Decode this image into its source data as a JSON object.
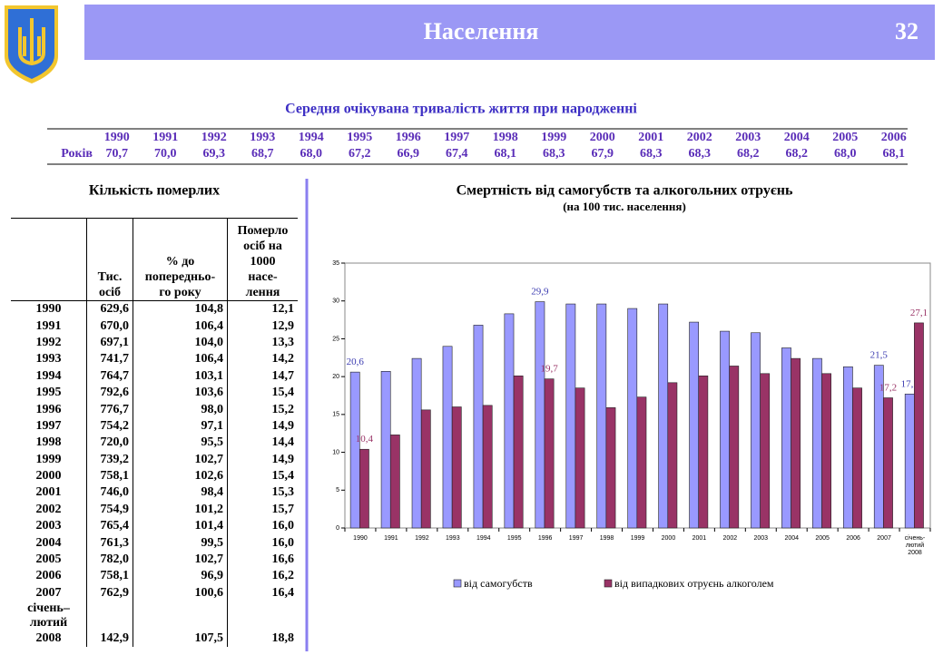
{
  "header": {
    "title": "Населення",
    "page": "32"
  },
  "life_table": {
    "title": "Середня очікувана тривалість життя при народженні",
    "row_label": "Років",
    "years": [
      "1990",
      "1991",
      "1992",
      "1993",
      "1994",
      "1995",
      "1996",
      "1997",
      "1998",
      "1999",
      "2000",
      "2001",
      "2002",
      "2003",
      "2004",
      "2005",
      "2006"
    ],
    "values": [
      "70,7",
      "70,0",
      "69,3",
      "68,7",
      "68,0",
      "67,2",
      "66,9",
      "67,4",
      "68,1",
      "68,3",
      "67,9",
      "68,3",
      "68,3",
      "68,2",
      "68,2",
      "68,0",
      "68,1"
    ]
  },
  "deaths_table": {
    "title": "Кількість померлих",
    "headers": [
      "Тис.\nосіб",
      "% до\nпопередньо-\nго року",
      "Померло\nосіб на\n1000\nнасе-\nлення"
    ],
    "last_row_note": "січень–лютий",
    "rows": [
      [
        "1990",
        "629,6",
        "104,8",
        "12,1"
      ],
      [
        "1991",
        "670,0",
        "106,4",
        "12,9"
      ],
      [
        "1992",
        "697,1",
        "104,0",
        "13,3"
      ],
      [
        "1993",
        "741,7",
        "106,4",
        "14,2"
      ],
      [
        "1994",
        "764,7",
        "103,1",
        "14,7"
      ],
      [
        "1995",
        "792,6",
        "103,6",
        "15,4"
      ],
      [
        "1996",
        "776,7",
        "98,0",
        "15,2"
      ],
      [
        "1997",
        "754,2",
        "97,1",
        "14,9"
      ],
      [
        "1998",
        "720,0",
        "95,5",
        "14,4"
      ],
      [
        "1999",
        "739,2",
        "102,7",
        "14,9"
      ],
      [
        "2000",
        "758,1",
        "102,6",
        "15,4"
      ],
      [
        "2001",
        "746,0",
        "98,4",
        "15,3"
      ],
      [
        "2002",
        "754,9",
        "101,2",
        "15,7"
      ],
      [
        "2003",
        "765,4",
        "101,4",
        "16,0"
      ],
      [
        "2004",
        "761,3",
        "99,5",
        "16,0"
      ],
      [
        "2005",
        "782,0",
        "102,7",
        "16,6"
      ],
      [
        "2006",
        "758,1",
        "96,9",
        "16,2"
      ],
      [
        "2007",
        "762,9",
        "100,6",
        "16,4"
      ],
      [
        "2008",
        "142,9",
        "107,5",
        "18,8"
      ]
    ]
  },
  "chart_data": {
    "type": "bar",
    "title": "Смертність від самогубств та алкогольних отруєнь",
    "subtitle": "(на 100 тис. населення)",
    "categories": [
      "1990",
      "1991",
      "1992",
      "1993",
      "1994",
      "1995",
      "1996",
      "1997",
      "1998",
      "1999",
      "2000",
      "2001",
      "2002",
      "2003",
      "2004",
      "2005",
      "2006",
      "2007",
      "січень-лютий 2008"
    ],
    "series": [
      {
        "name": "від самогубств",
        "color": "#9999ff",
        "values": [
          20.6,
          20.7,
          22.4,
          24.0,
          26.8,
          28.3,
          29.9,
          29.6,
          29.6,
          29.0,
          29.6,
          27.2,
          26.0,
          25.8,
          23.8,
          22.4,
          21.3,
          21.5,
          17.7
        ],
        "value_labels": [
          "20,6",
          null,
          null,
          null,
          null,
          null,
          "29,9",
          null,
          null,
          null,
          null,
          null,
          null,
          null,
          null,
          null,
          null,
          "21,5",
          "17,7"
        ]
      },
      {
        "name": "від випадкових отруєнь алкоголем",
        "color": "#993366",
        "values": [
          10.4,
          12.3,
          15.6,
          16.0,
          16.2,
          20.1,
          19.7,
          18.5,
          15.9,
          17.3,
          19.2,
          20.1,
          21.4,
          20.4,
          22.4,
          20.4,
          18.5,
          17.2,
          27.1
        ],
        "value_labels": [
          "10,4",
          null,
          null,
          null,
          null,
          null,
          "19,7",
          null,
          null,
          null,
          null,
          null,
          null,
          null,
          null,
          null,
          null,
          "17,2",
          "27,1"
        ]
      }
    ],
    "ylim": [
      0,
      35
    ],
    "yticks": [
      0,
      5,
      10,
      15,
      20,
      25,
      30,
      35
    ]
  }
}
